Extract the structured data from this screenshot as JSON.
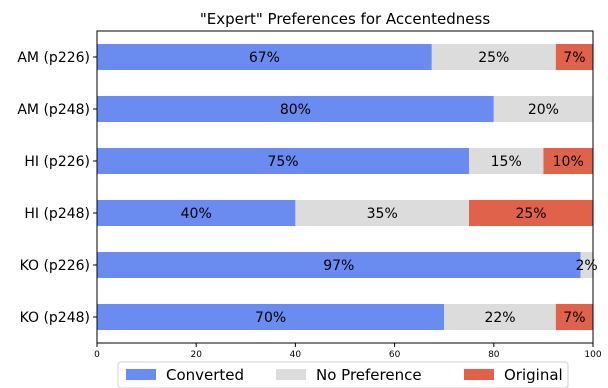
{
  "chart_data": {
    "type": "bar",
    "orientation": "horizontal",
    "stacked": true,
    "title": "\"Expert\" Preferences for Accentedness",
    "xlabel": "",
    "ylabel": "",
    "xlim": [
      0,
      100
    ],
    "xticks": [
      0,
      20,
      40,
      60,
      80,
      100
    ],
    "grid": false,
    "legend_position": "bottom",
    "categories": [
      "AM (p226)",
      "AM (p248)",
      "HI (p226)",
      "HI (p248)",
      "KO (p226)",
      "KO (p248)"
    ],
    "series": [
      {
        "name": "Converted",
        "color": "#6a8bef",
        "values": [
          67.5,
          80,
          75,
          40,
          97.5,
          70
        ],
        "labels": [
          "67%",
          "80%",
          "75%",
          "40%",
          "97%",
          "70%"
        ]
      },
      {
        "name": "No Preference",
        "color": "#dcdcdc",
        "values": [
          25,
          20,
          15,
          35,
          2.5,
          22.5
        ],
        "labels": [
          "25%",
          "20%",
          "15%",
          "35%",
          "2%",
          "22%"
        ]
      },
      {
        "name": "Original",
        "color": "#e1624b",
        "values": [
          7.5,
          0,
          10,
          25,
          0,
          7.5
        ],
        "labels": [
          "7%",
          "",
          "10%",
          "25%",
          "",
          "7%"
        ]
      }
    ]
  }
}
